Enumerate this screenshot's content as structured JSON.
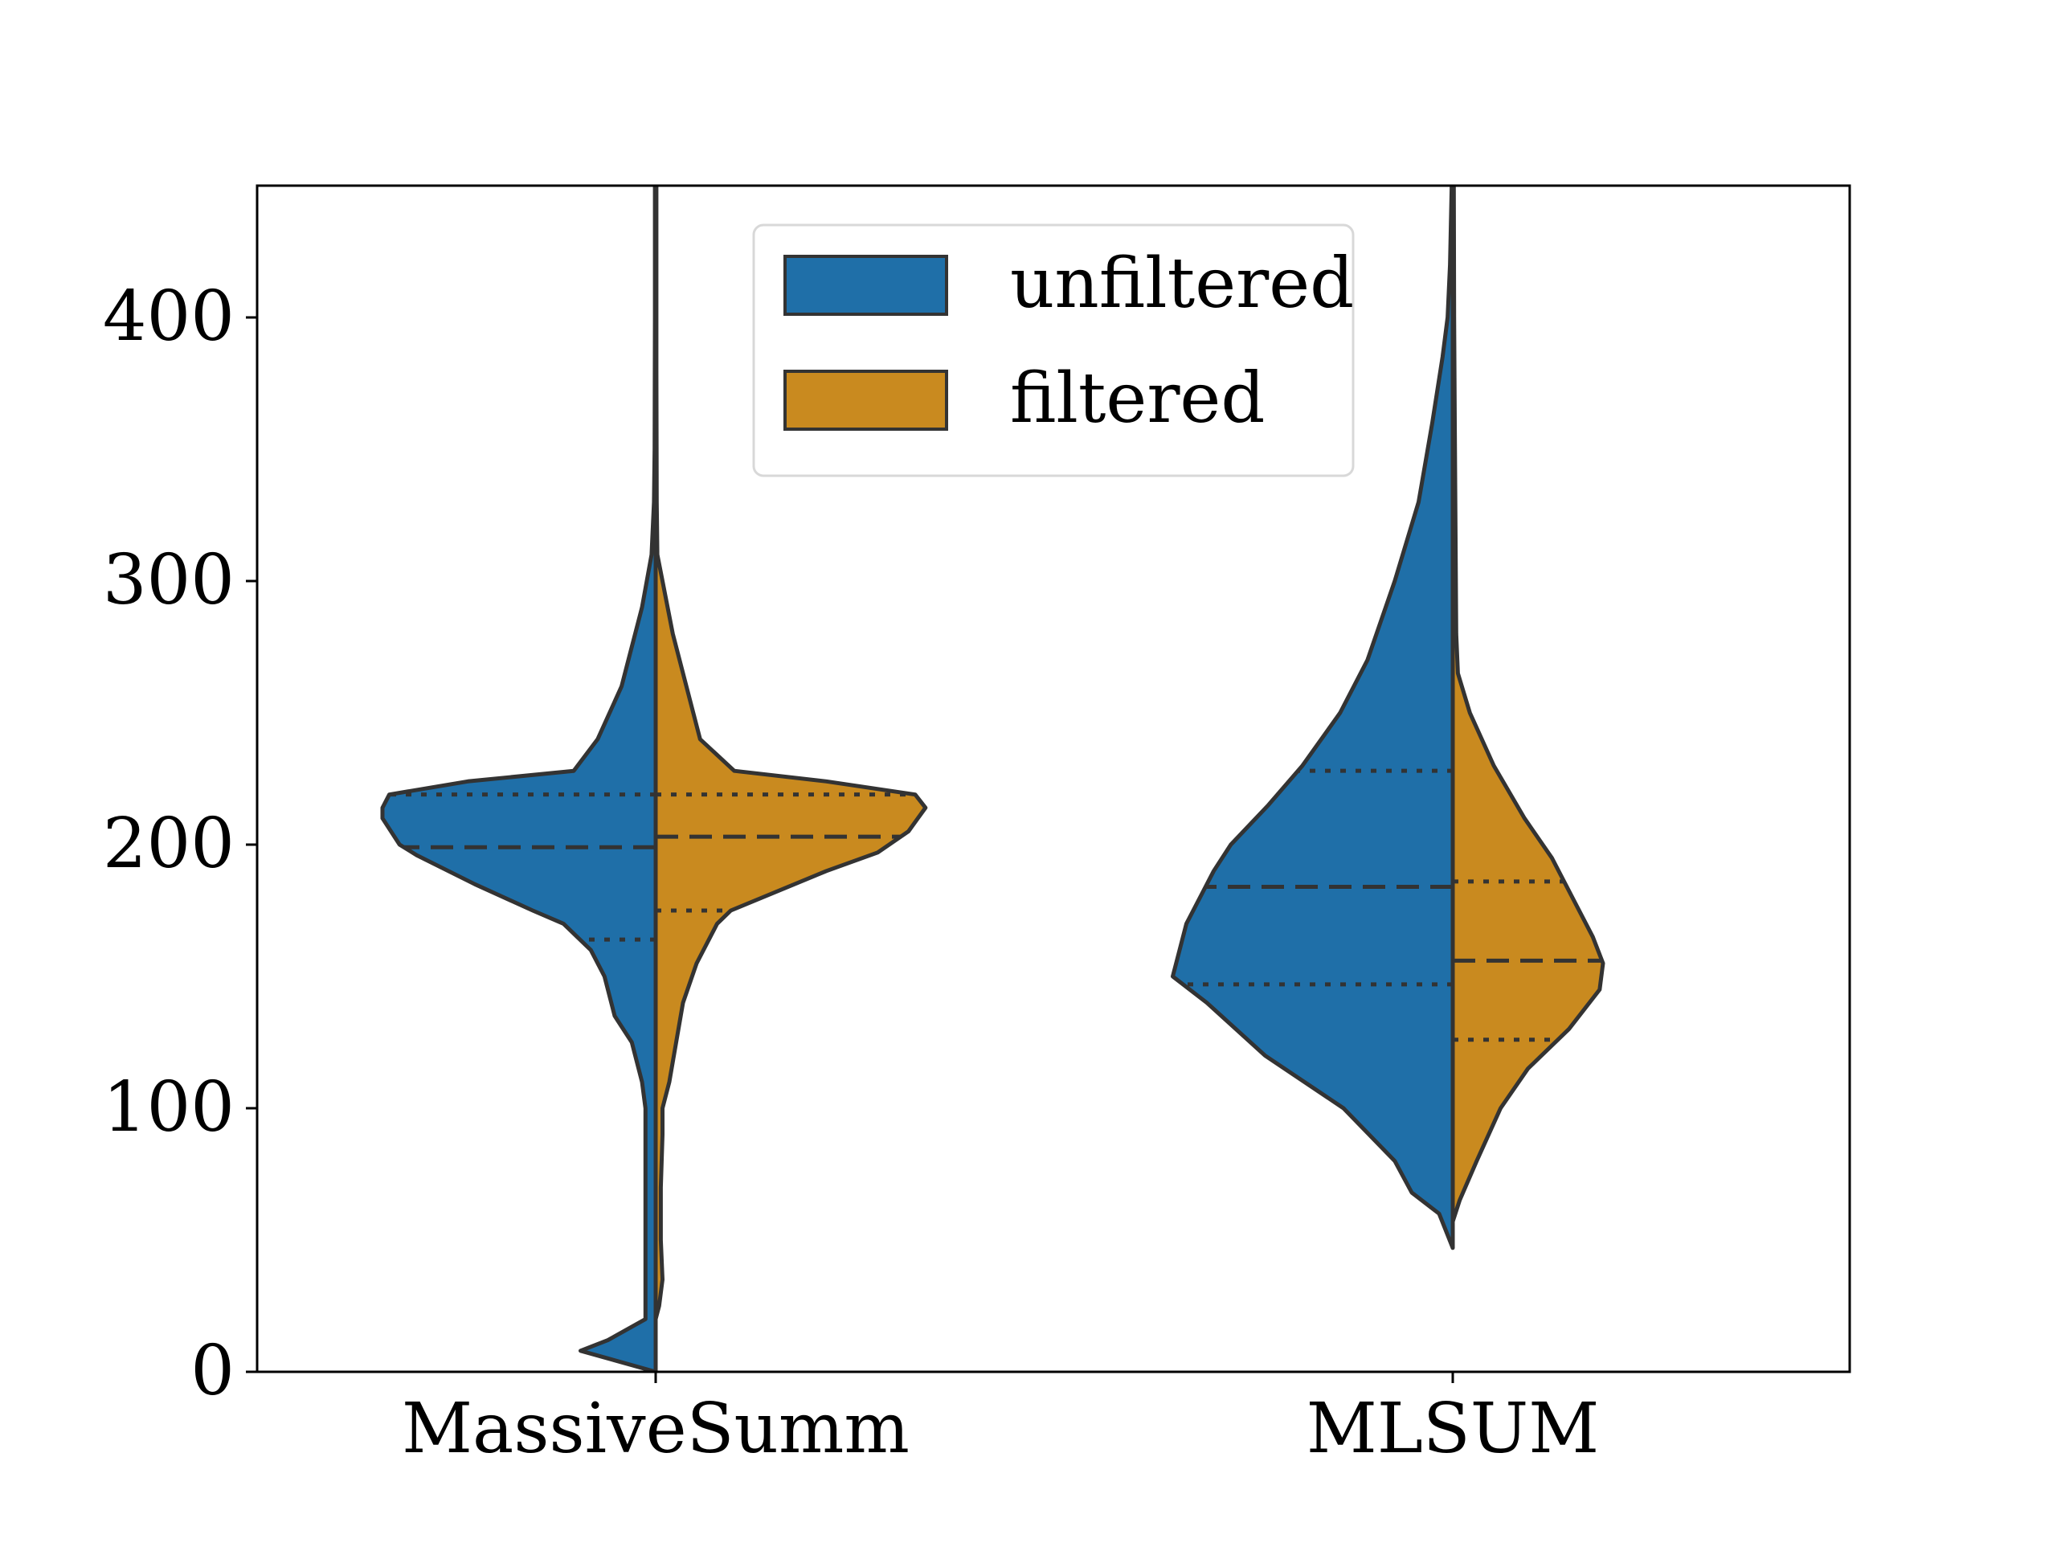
{
  "chart_data": {
    "type": "violin",
    "split": true,
    "categories": [
      "MassiveSumm",
      "MLSUM"
    ],
    "ylim": [
      0,
      450
    ],
    "yticks": [
      0,
      100,
      200,
      300,
      400
    ],
    "xlabel": "",
    "ylabel": "",
    "title": "",
    "grid": false,
    "legend": {
      "position": "top-center",
      "entries": [
        {
          "label": "unfiltered",
          "color": "#1f6fa8"
        },
        {
          "label": "filtered",
          "color": "#c98a1f"
        }
      ]
    },
    "outline_color": "#333333",
    "series": [
      {
        "name": "unfiltered",
        "color": "#1f6fa8",
        "side": "left",
        "violins": [
          {
            "category": "MassiveSumm",
            "quartiles": {
              "q1": 164,
              "median": 199,
              "q3": 219
            },
            "density": [
              [
                0,
                0.0
              ],
              [
                8,
                0.22
              ],
              [
                12,
                0.14
              ],
              [
                20,
                0.03
              ],
              [
                30,
                0.03
              ],
              [
                45,
                0.03
              ],
              [
                60,
                0.03
              ],
              [
                80,
                0.03
              ],
              [
                100,
                0.03
              ],
              [
                110,
                0.04
              ],
              [
                125,
                0.07
              ],
              [
                135,
                0.12
              ],
              [
                150,
                0.15
              ],
              [
                160,
                0.19
              ],
              [
                170,
                0.27
              ],
              [
                175,
                0.36
              ],
              [
                185,
                0.53
              ],
              [
                196,
                0.7
              ],
              [
                200,
                0.75
              ],
              [
                210,
                0.8
              ],
              [
                214,
                0.8
              ],
              [
                219,
                0.78
              ],
              [
                224,
                0.55
              ],
              [
                228,
                0.24
              ],
              [
                240,
                0.17
              ],
              [
                260,
                0.1
              ],
              [
                270,
                0.08
              ],
              [
                290,
                0.04
              ],
              [
                310,
                0.012
              ],
              [
                330,
                0.005
              ],
              [
                350,
                0.003
              ],
              [
                400,
                0.002
              ],
              [
                450,
                0.002
              ]
            ]
          },
          {
            "category": "MLSUM",
            "quartiles": {
              "q1": 147,
              "median": 184,
              "q3": 228
            },
            "density": [
              [
                47,
                0.0
              ],
              [
                60,
                0.04
              ],
              [
                68,
                0.12
              ],
              [
                80,
                0.17
              ],
              [
                100,
                0.32
              ],
              [
                120,
                0.55
              ],
              [
                140,
                0.72
              ],
              [
                150,
                0.82
              ],
              [
                160,
                0.8
              ],
              [
                170,
                0.78
              ],
              [
                180,
                0.74
              ],
              [
                190,
                0.7
              ],
              [
                200,
                0.65
              ],
              [
                215,
                0.54
              ],
              [
                230,
                0.44
              ],
              [
                250,
                0.33
              ],
              [
                270,
                0.25
              ],
              [
                300,
                0.17
              ],
              [
                330,
                0.1
              ],
              [
                360,
                0.06
              ],
              [
                385,
                0.03
              ],
              [
                400,
                0.015
              ],
              [
                420,
                0.008
              ],
              [
                450,
                0.003
              ]
            ]
          }
        ]
      },
      {
        "name": "filtered",
        "color": "#c98a1f",
        "side": "right",
        "violins": [
          {
            "category": "MassiveSumm",
            "quartiles": {
              "q1": 175,
              "median": 203,
              "q3": 219
            },
            "density": [
              [
                20,
                0.0
              ],
              [
                25,
                0.01
              ],
              [
                35,
                0.02
              ],
              [
                50,
                0.015
              ],
              [
                70,
                0.015
              ],
              [
                90,
                0.02
              ],
              [
                100,
                0.02
              ],
              [
                110,
                0.04
              ],
              [
                125,
                0.06
              ],
              [
                140,
                0.08
              ],
              [
                155,
                0.12
              ],
              [
                170,
                0.18
              ],
              [
                175,
                0.22
              ],
              [
                190,
                0.5
              ],
              [
                197,
                0.65
              ],
              [
                205,
                0.74
              ],
              [
                214,
                0.79
              ],
              [
                219,
                0.76
              ],
              [
                224,
                0.5
              ],
              [
                228,
                0.23
              ],
              [
                240,
                0.13
              ],
              [
                260,
                0.09
              ],
              [
                280,
                0.05
              ],
              [
                300,
                0.02
              ],
              [
                310,
                0.005
              ],
              [
                330,
                0.003
              ],
              [
                380,
                0.002
              ],
              [
                450,
                0.002
              ]
            ]
          },
          {
            "category": "MLSUM",
            "quartiles": {
              "q1": 126,
              "median": 156,
              "q3": 186
            },
            "density": [
              [
                57,
                0.0
              ],
              [
                65,
                0.02
              ],
              [
                80,
                0.07
              ],
              [
                100,
                0.14
              ],
              [
                115,
                0.22
              ],
              [
                130,
                0.34
              ],
              [
                145,
                0.43
              ],
              [
                155,
                0.44
              ],
              [
                165,
                0.41
              ],
              [
                180,
                0.35
              ],
              [
                195,
                0.29
              ],
              [
                210,
                0.21
              ],
              [
                230,
                0.12
              ],
              [
                250,
                0.05
              ],
              [
                265,
                0.015
              ],
              [
                280,
                0.01
              ],
              [
                320,
                0.008
              ],
              [
                360,
                0.006
              ],
              [
                400,
                0.004
              ],
              [
                450,
                0.003
              ]
            ]
          }
        ]
      }
    ]
  }
}
